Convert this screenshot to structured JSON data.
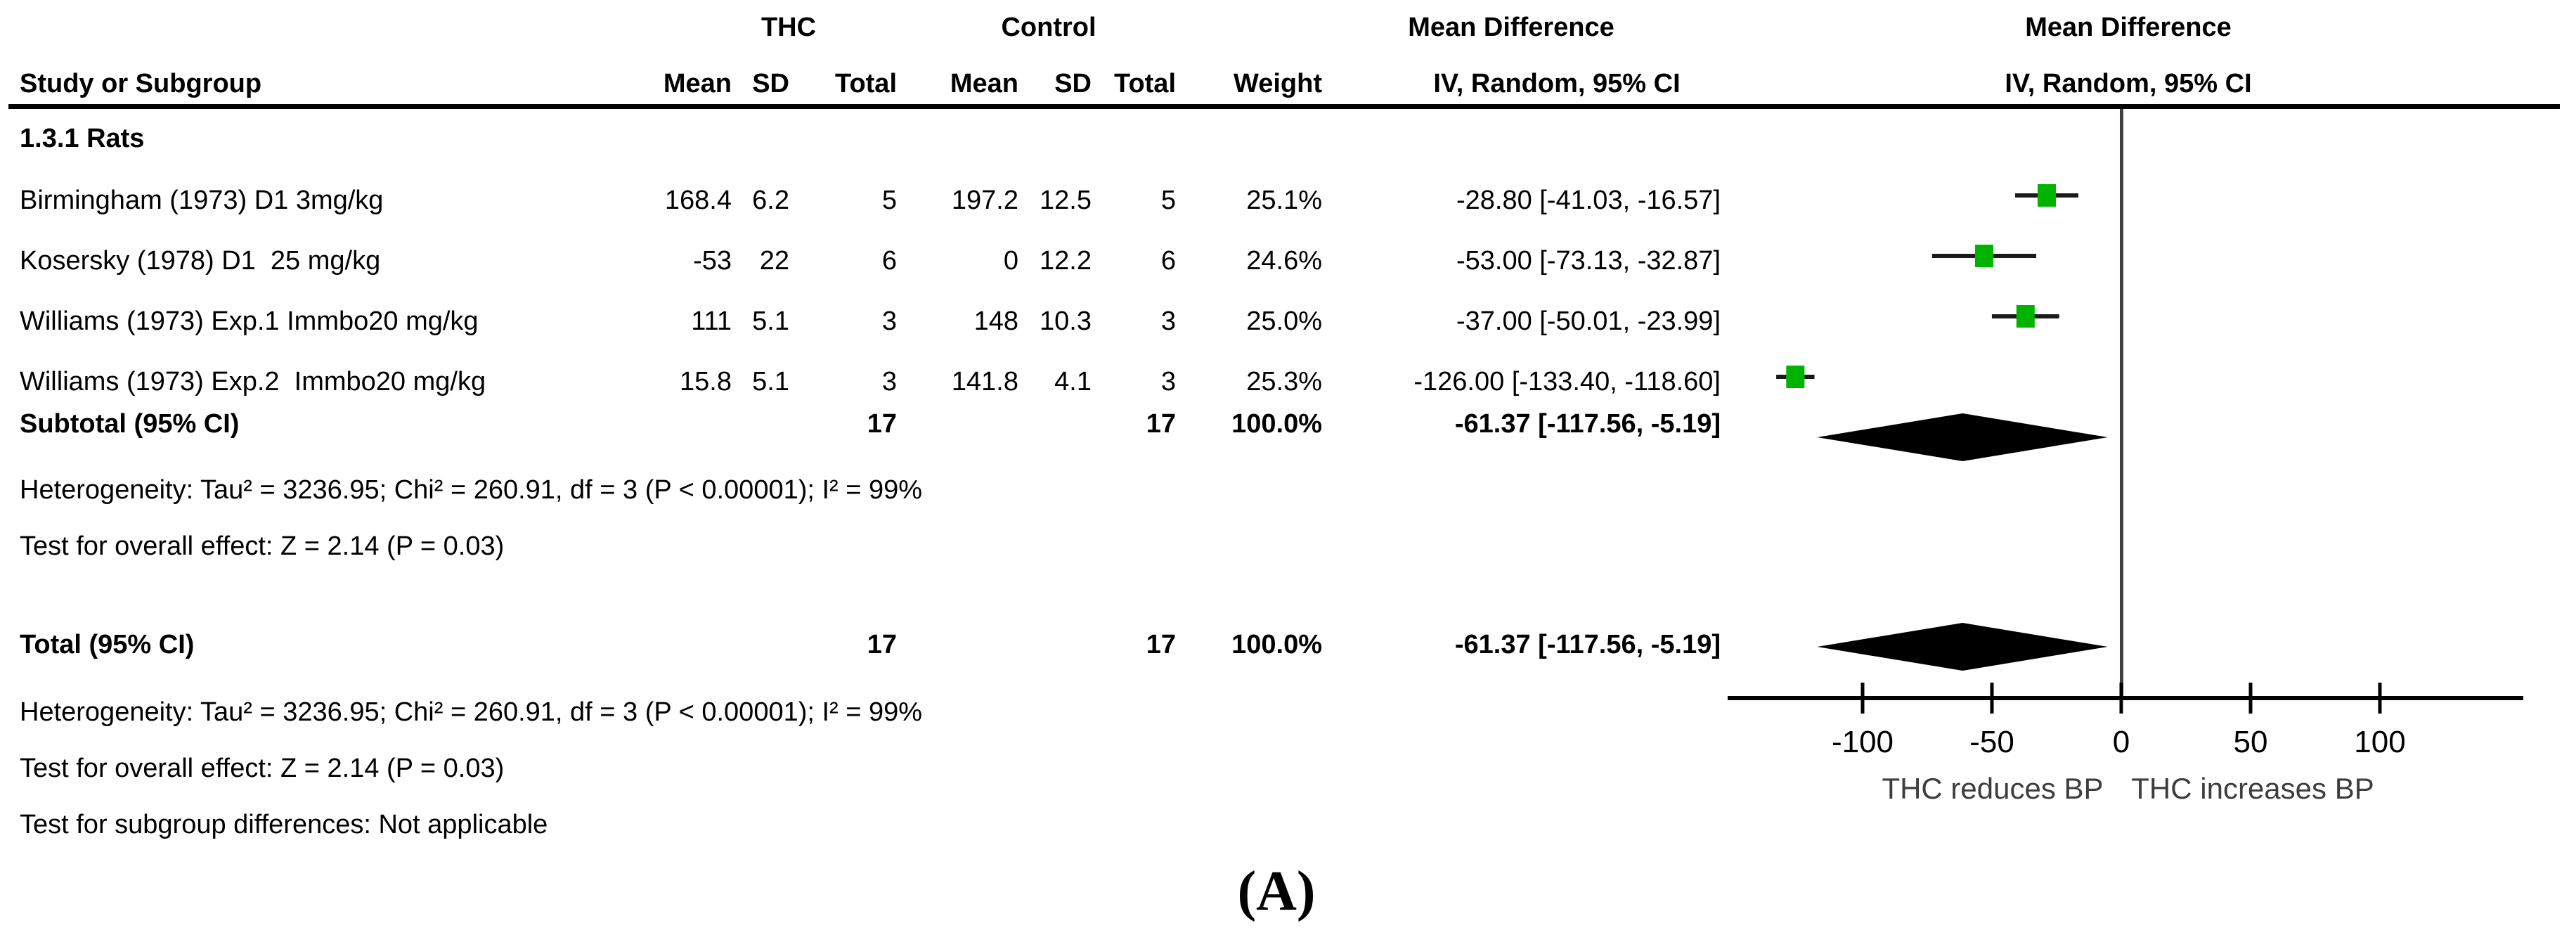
{
  "header": {
    "study": "Study or Subgroup",
    "group1": "THC",
    "group2": "Control",
    "mean": "Mean",
    "sd": "SD",
    "total": "Total",
    "weight": "Weight",
    "md_title": "Mean Difference",
    "md_sub": "IV, Random, 95% CI"
  },
  "subgroup_label": "1.3.1 Rats",
  "studies": [
    {
      "name": "Birmingham (1973) D1 3mg/kg",
      "thc_mean": "168.4",
      "thc_sd": "6.2",
      "thc_total": "5",
      "ctrl_mean": "197.2",
      "ctrl_sd": "12.5",
      "ctrl_total": "5",
      "weight": "25.1%",
      "ci_text": "-28.80 [-41.03, -16.57]",
      "md": -28.8,
      "lo": -41.03,
      "hi": -16.57
    },
    {
      "name": "Kosersky (1978) D1  25 mg/kg",
      "thc_mean": "-53",
      "thc_sd": "22",
      "thc_total": "6",
      "ctrl_mean": "0",
      "ctrl_sd": "12.2",
      "ctrl_total": "6",
      "weight": "24.6%",
      "ci_text": "-53.00 [-73.13, -32.87]",
      "md": -53,
      "lo": -73.13,
      "hi": -32.87
    },
    {
      "name": "Williams (1973) Exp.1 Immbo20 mg/kg",
      "thc_mean": "111",
      "thc_sd": "5.1",
      "thc_total": "3",
      "ctrl_mean": "148",
      "ctrl_sd": "10.3",
      "ctrl_total": "3",
      "weight": "25.0%",
      "ci_text": "-37.00 [-50.01, -23.99]",
      "md": -37,
      "lo": -50.01,
      "hi": -23.99
    },
    {
      "name": "Williams (1973) Exp.2  Immbo20 mg/kg",
      "thc_mean": "15.8",
      "thc_sd": "5.1",
      "thc_total": "3",
      "ctrl_mean": "141.8",
      "ctrl_sd": "4.1",
      "ctrl_total": "3",
      "weight": "25.3%",
      "ci_text": "-126.00 [-133.40, -118.60]",
      "md": -126,
      "lo": -133.4,
      "hi": -118.6
    }
  ],
  "subtotal": {
    "label": "Subtotal (95% CI)",
    "thc_total": "17",
    "ctrl_total": "17",
    "weight": "100.0%",
    "ci_text": "-61.37 [-117.56, -5.19]",
    "md": -61.37,
    "lo": -117.56,
    "hi": -5.19
  },
  "subgroup_stats": {
    "heterogeneity": "Heterogeneity: Tau² = 3236.95; Chi² = 260.91, df = 3 (P < 0.00001); I² = 99%",
    "overall_effect": "Test for overall effect: Z = 2.14 (P = 0.03)"
  },
  "total": {
    "label": "Total (95% CI)",
    "thc_total": "17",
    "ctrl_total": "17",
    "weight": "100.0%",
    "ci_text": "-61.37 [-117.56, -5.19]",
    "md": -61.37,
    "lo": -117.56,
    "hi": -5.19
  },
  "total_stats": {
    "heterogeneity": "Heterogeneity: Tau² = 3236.95; Chi² = 260.91, df = 3 (P < 0.00001); I² = 99%",
    "overall_effect": "Test for overall effect: Z = 2.14 (P = 0.03)",
    "subgroup_differences": "Test for subgroup differences: Not applicable"
  },
  "axis": {
    "ticks": [
      -100,
      -50,
      0,
      50,
      100
    ],
    "tick_labels": [
      "-100",
      "-50",
      "0",
      "50",
      "100"
    ],
    "range": [
      -150,
      155
    ],
    "dir_left": "THC reduces BP",
    "dir_right": "THC increases BP"
  },
  "caption": "(A)",
  "colors": {
    "square": "#00b300",
    "diamond": "#000000",
    "zero_line": "#404040",
    "line": "#1a1a1a"
  },
  "chart_data": {
    "type": "scatter",
    "subtype": "forest-plot",
    "title": "Mean Difference, IV, Random, 95% CI",
    "xlabel_left": "THC reduces BP",
    "xlabel_right": "THC increases BP",
    "xlim": [
      -150,
      155
    ],
    "xticks": [
      -100,
      -50,
      0,
      50,
      100
    ],
    "zero_line": 0,
    "series": [
      {
        "name": "Birmingham (1973) D1 3mg/kg",
        "md": -28.8,
        "ci": [
          -41.03,
          -16.57
        ],
        "weight_pct": 25.1
      },
      {
        "name": "Kosersky (1978) D1 25 mg/kg",
        "md": -53.0,
        "ci": [
          -73.13,
          -32.87
        ],
        "weight_pct": 24.6
      },
      {
        "name": "Williams (1973) Exp.1 Immbo20 mg/kg",
        "md": -37.0,
        "ci": [
          -50.01,
          -23.99
        ],
        "weight_pct": 25.0
      },
      {
        "name": "Williams (1973) Exp.2 Immbo20 mg/kg",
        "md": -126.0,
        "ci": [
          -133.4,
          -118.6
        ],
        "weight_pct": 25.3
      }
    ],
    "diamonds": [
      {
        "name": "Subtotal (95% CI)",
        "md": -61.37,
        "ci": [
          -117.56,
          -5.19
        ]
      },
      {
        "name": "Total (95% CI)",
        "md": -61.37,
        "ci": [
          -117.56,
          -5.19
        ]
      }
    ]
  }
}
